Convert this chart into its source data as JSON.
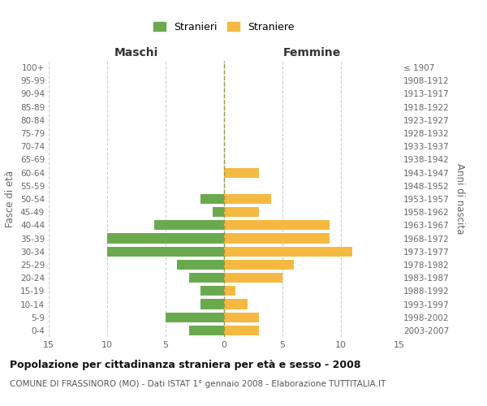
{
  "age_groups": [
    "0-4",
    "5-9",
    "10-14",
    "15-19",
    "20-24",
    "25-29",
    "30-34",
    "35-39",
    "40-44",
    "45-49",
    "50-54",
    "55-59",
    "60-64",
    "65-69",
    "70-74",
    "75-79",
    "80-84",
    "85-89",
    "90-94",
    "95-99",
    "100+"
  ],
  "birth_years": [
    "2003-2007",
    "1998-2002",
    "1993-1997",
    "1988-1992",
    "1983-1987",
    "1978-1982",
    "1973-1977",
    "1968-1972",
    "1963-1967",
    "1958-1962",
    "1953-1957",
    "1948-1952",
    "1943-1947",
    "1938-1942",
    "1933-1937",
    "1928-1932",
    "1923-1927",
    "1918-1922",
    "1913-1917",
    "1908-1912",
    "≤ 1907"
  ],
  "maschi": [
    3,
    5,
    2,
    2,
    3,
    4,
    10,
    10,
    6,
    1,
    2,
    0,
    0,
    0,
    0,
    0,
    0,
    0,
    0,
    0,
    0
  ],
  "femmine": [
    3,
    3,
    2,
    1,
    5,
    6,
    11,
    9,
    9,
    3,
    4,
    0,
    3,
    0,
    0,
    0,
    0,
    0,
    0,
    0,
    0
  ],
  "maschi_color": "#6aaa4f",
  "femmine_color": "#f5b942",
  "title": "Popolazione per cittadinanza straniera per età e sesso - 2008",
  "subtitle": "COMUNE DI FRASSINORO (MO) - Dati ISTAT 1° gennaio 2008 - Elaborazione TUTTITALIA.IT",
  "header_maschi": "Maschi",
  "header_femmine": "Femmine",
  "ylabel": "Fasce di età",
  "ylabel_right": "Anni di nascita",
  "legend_maschi": "Stranieri",
  "legend_femmine": "Straniere",
  "xlim": 15,
  "background_color": "#ffffff",
  "grid_color": "#d0d0d0"
}
